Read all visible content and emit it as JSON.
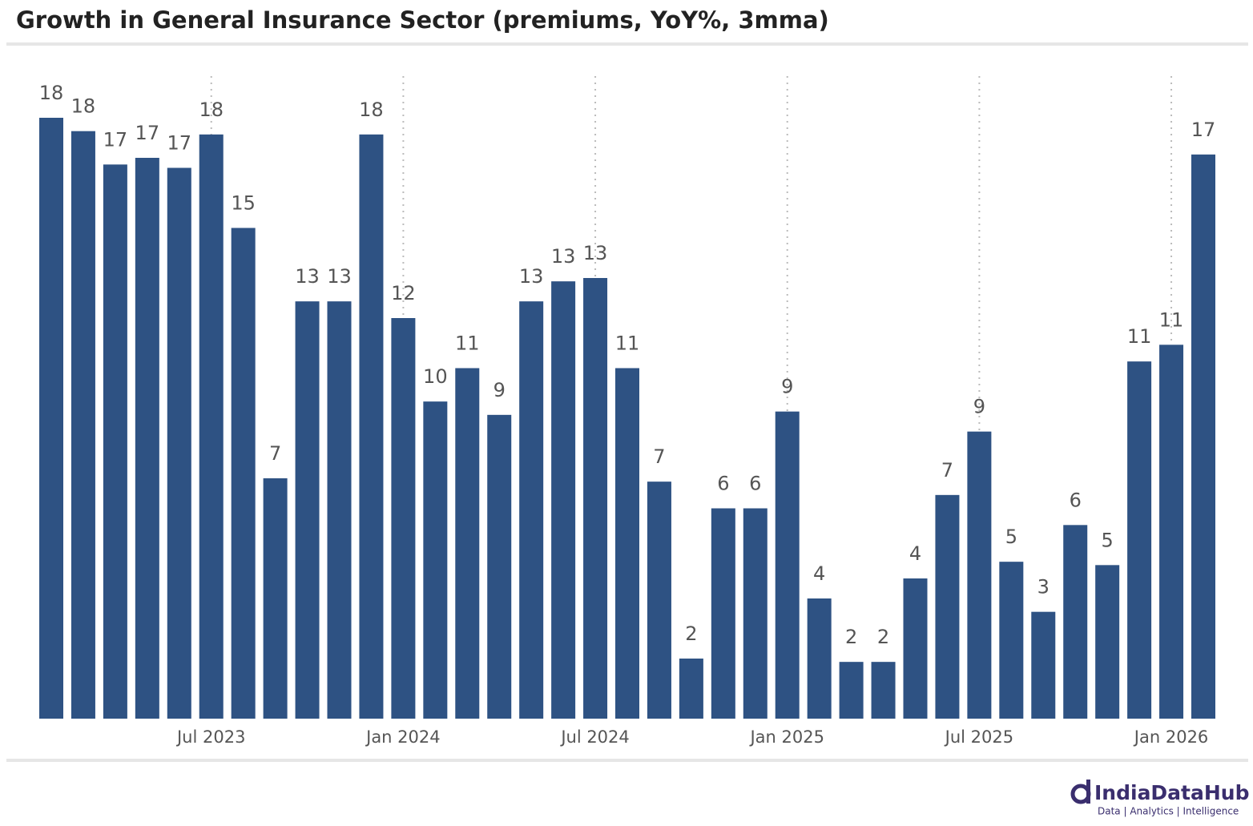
{
  "chart_data": {
    "type": "bar",
    "title": "Growth in General Insurance Sector (premiums, YoY%, 3mma)",
    "categories": [
      null,
      null,
      null,
      null,
      null,
      "Jul 2023",
      null,
      null,
      null,
      null,
      null,
      "Jan 2024",
      null,
      null,
      null,
      null,
      null,
      "Jul 2024",
      null,
      null,
      null,
      null,
      null,
      "Jan 2025",
      null,
      null,
      null,
      null,
      null,
      "Jul 2025",
      null,
      null,
      null,
      null,
      null,
      "Jan 2026",
      null
    ],
    "values": [
      18.0,
      17.6,
      16.6,
      16.8,
      16.5,
      17.5,
      14.7,
      7.2,
      12.5,
      12.5,
      17.5,
      12.0,
      9.5,
      10.5,
      9.1,
      12.5,
      13.1,
      13.2,
      10.5,
      7.1,
      1.8,
      6.3,
      6.3,
      9.2,
      3.6,
      1.7,
      1.7,
      4.2,
      6.7,
      8.6,
      4.7,
      3.2,
      5.8,
      4.6,
      10.7,
      11.2,
      16.9
    ],
    "value_labels": [
      "18",
      "18",
      "17",
      "17",
      "17",
      "18",
      "15",
      "7",
      "13",
      "13",
      "18",
      "12",
      "10",
      "11",
      "9",
      "13",
      "13",
      "13",
      "11",
      "7",
      "2",
      "6",
      "6",
      "9",
      "4",
      "2",
      "2",
      "4",
      "7",
      "9",
      "5",
      "3",
      "6",
      "5",
      "11",
      "11",
      "17"
    ],
    "color": "#2e5283",
    "ylim": [
      0,
      18
    ],
    "grid": "x-dotted"
  },
  "brand": {
    "name": "IndiaDataHub",
    "tagline": "Data | Analytics | Intelligence"
  }
}
